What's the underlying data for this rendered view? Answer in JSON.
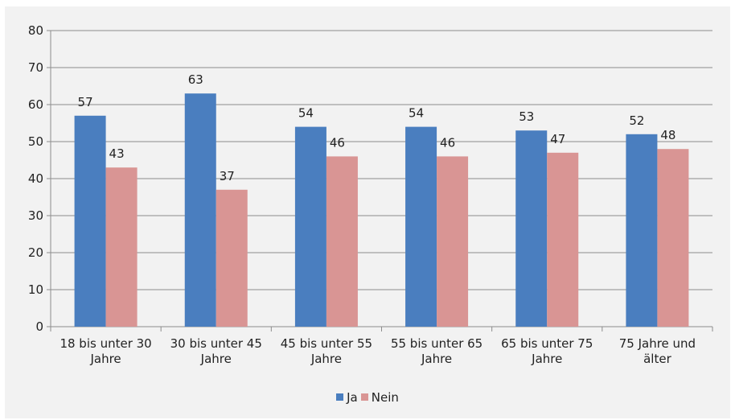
{
  "chart_data": {
    "type": "bar",
    "categories": [
      [
        "18 bis unter 30",
        "Jahre"
      ],
      [
        "30 bis unter 45",
        "Jahre"
      ],
      [
        "45 bis unter 55",
        "Jahre"
      ],
      [
        "55 bis unter 65",
        "Jahre"
      ],
      [
        "65 bis unter 75",
        "Jahre"
      ],
      [
        "75 Jahre und",
        "älter"
      ]
    ],
    "series": [
      {
        "name": "Ja",
        "color": "#4a7ebf",
        "values": [
          57,
          63,
          54,
          54,
          53,
          52
        ]
      },
      {
        "name": "Nein",
        "color": "#d99594",
        "values": [
          43,
          37,
          46,
          46,
          47,
          48
        ]
      }
    ],
    "ylim": [
      0,
      80
    ],
    "yticks": [
      0,
      10,
      20,
      30,
      40,
      50,
      60,
      70,
      80
    ],
    "grid": true,
    "legend_position": "bottom",
    "title": "",
    "xlabel": "",
    "ylabel": ""
  }
}
